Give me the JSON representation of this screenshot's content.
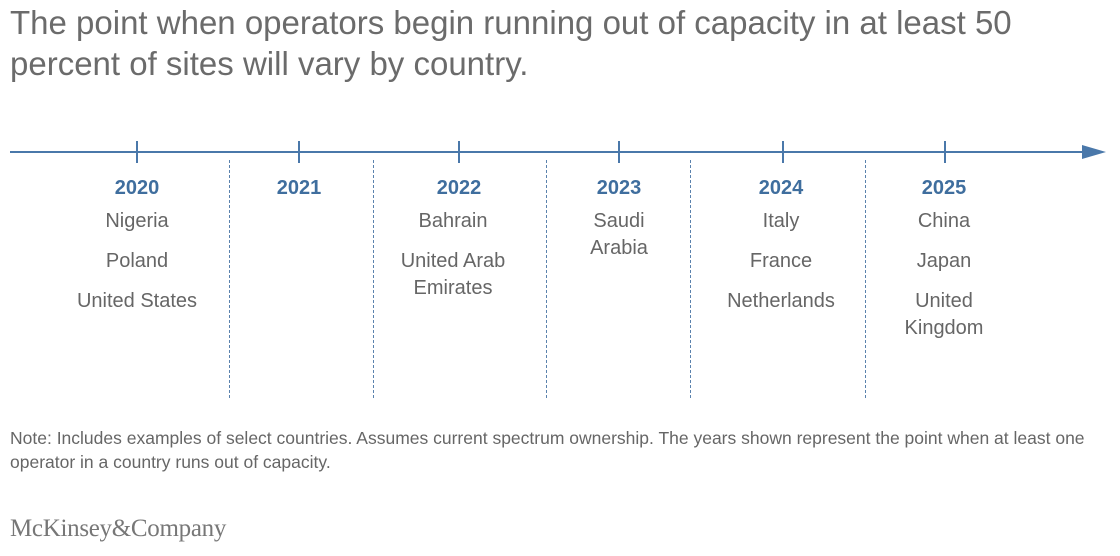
{
  "title": "The point when operators begin running out of capacity in at least 50 percent of sites will vary by country.",
  "timeline": [
    {
      "year": "2020",
      "countries": [
        "Nigeria",
        "Poland",
        "United States"
      ]
    },
    {
      "year": "2021",
      "countries": []
    },
    {
      "year": "2022",
      "countries": [
        "Bahrain",
        "United Arab Emirates"
      ]
    },
    {
      "year": "2023",
      "countries": [
        "Saudi Arabia"
      ]
    },
    {
      "year": "2024",
      "countries": [
        "Italy",
        "France",
        "Netherlands"
      ]
    },
    {
      "year": "2025",
      "countries": [
        "China",
        "Japan",
        "United Kingdom"
      ]
    }
  ],
  "note": "Note: Includes examples of select countries. Assumes current spectrum ownership. The years shown represent the point when at least one operator in a country runs out of capacity.",
  "logo": "McKinsey&Company",
  "colors": {
    "accent": "#3f6e9e",
    "line": "#4a78aa",
    "text": "#666666",
    "title": "#6b6b6b"
  }
}
